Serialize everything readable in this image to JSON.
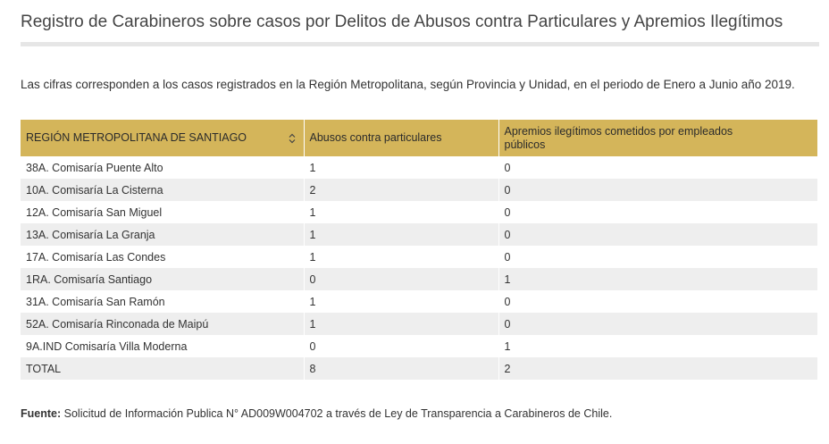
{
  "title": "Registro de Carabineros sobre casos por Delitos de Abusos contra Particulares y Apremios Ilegítimos",
  "intro": "Las cifras corresponden a los casos registrados en la Región Metropolitana, según Provincia y Unidad, en el periodo de Enero a Junio año 2019.",
  "table": {
    "headers": [
      "REGIÓN METROPOLITANA DE SANTIAGO",
      "Abusos contra particulares",
      "Apremios ilegítimos cometidos por empleados públicos"
    ],
    "sort_icon": "sort-icon",
    "rows": [
      [
        "38A. Comisaría Puente Alto",
        "1",
        "0"
      ],
      [
        "10A. Comisaría La Cisterna",
        "2",
        "0"
      ],
      [
        "12A. Comisaría San Miguel",
        "1",
        "0"
      ],
      [
        "13A. Comisaría La Granja",
        "1",
        "0"
      ],
      [
        "17A. Comisaría Las Condes",
        "1",
        "0"
      ],
      [
        "1RA. Comisaría Santiago",
        "0",
        "1"
      ],
      [
        "31A. Comisaría San Ramón",
        "1",
        "0"
      ],
      [
        "52A. Comisaría Rinconada de Maipú",
        "1",
        "0"
      ],
      [
        "9A.IND Comisaría Villa Moderna",
        "0",
        "1"
      ],
      [
        "TOTAL",
        "8",
        "2"
      ]
    ]
  },
  "source": {
    "label": "Fuente:",
    "text": "Solicitud de Información Publica N°  AD009W004702 a través de Ley de Transparencia a Carabineros de Chile."
  },
  "colors": {
    "header_bg": "#d4b55a",
    "row_alt_bg": "#eeeeee",
    "rule": "#e6e6e6"
  }
}
